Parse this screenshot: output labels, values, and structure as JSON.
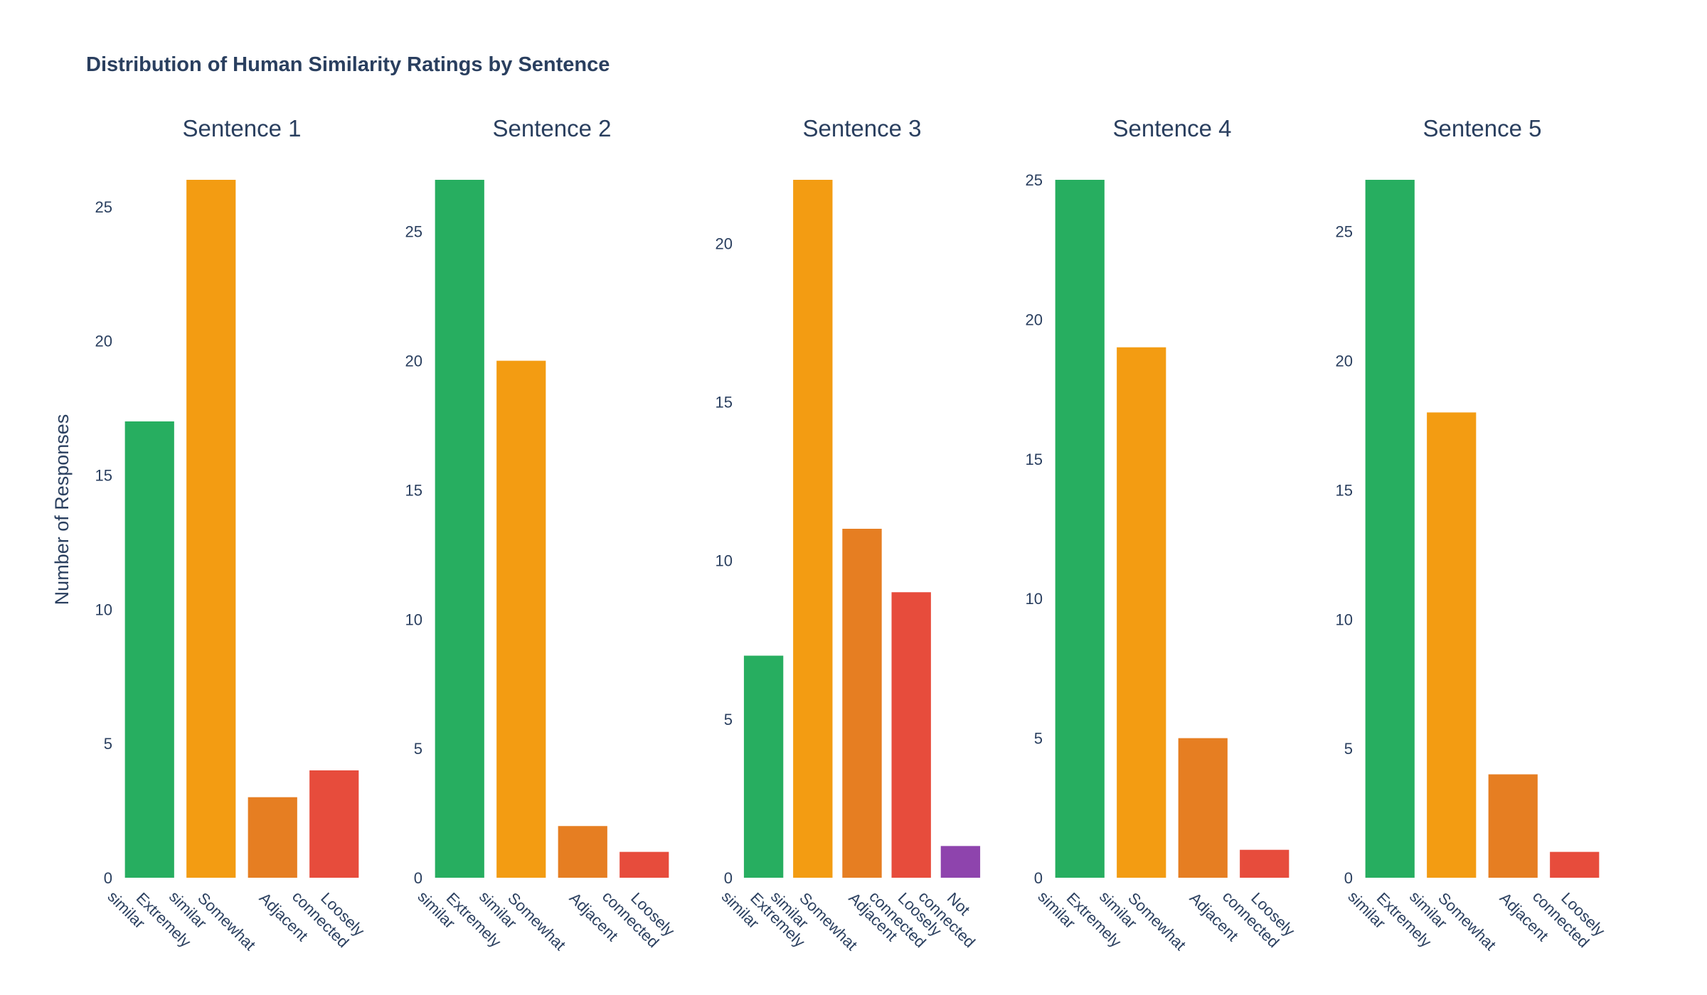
{
  "title": "Distribution of Human Similarity Ratings by Sentence",
  "ylabel": "Number of Responses",
  "colors": {
    "Extremely similar": "#27ae60",
    "Somewhat similar": "#f39c12",
    "Adjacent": "#e67e22",
    "Loosely connected": "#e74c3c",
    "Not connected": "#8e44ad"
  },
  "chart_data": [
    {
      "type": "bar",
      "title": "Sentence 1",
      "categories": [
        "Extremely similar",
        "Somewhat similar",
        "Adjacent",
        "Loosely connected"
      ],
      "values": [
        17,
        26,
        3,
        4
      ],
      "ylim": [
        0,
        26
      ],
      "yticks": [
        0,
        5,
        10,
        15,
        20,
        25
      ]
    },
    {
      "type": "bar",
      "title": "Sentence 2",
      "categories": [
        "Extremely similar",
        "Somewhat similar",
        "Adjacent",
        "Loosely connected"
      ],
      "values": [
        27,
        20,
        2,
        1
      ],
      "ylim": [
        0,
        27
      ],
      "yticks": [
        0,
        5,
        10,
        15,
        20,
        25
      ]
    },
    {
      "type": "bar",
      "title": "Sentence 3",
      "categories": [
        "Extremely similar",
        "Somewhat similar",
        "Adjacent",
        "Loosely connected",
        "Not connected"
      ],
      "values": [
        7,
        22,
        11,
        9,
        1
      ],
      "ylim": [
        0,
        22
      ],
      "yticks": [
        0,
        5,
        10,
        15,
        20
      ]
    },
    {
      "type": "bar",
      "title": "Sentence 4",
      "categories": [
        "Extremely similar",
        "Somewhat similar",
        "Adjacent",
        "Loosely connected"
      ],
      "values": [
        25,
        19,
        5,
        1
      ],
      "ylim": [
        0,
        25
      ],
      "yticks": [
        0,
        5,
        10,
        15,
        20,
        25
      ]
    },
    {
      "type": "bar",
      "title": "Sentence 5",
      "categories": [
        "Extremely similar",
        "Somewhat similar",
        "Adjacent",
        "Loosely connected"
      ],
      "values": [
        27,
        18,
        4,
        1
      ],
      "ylim": [
        0,
        27
      ],
      "yticks": [
        0,
        5,
        10,
        15,
        20,
        25
      ]
    }
  ]
}
